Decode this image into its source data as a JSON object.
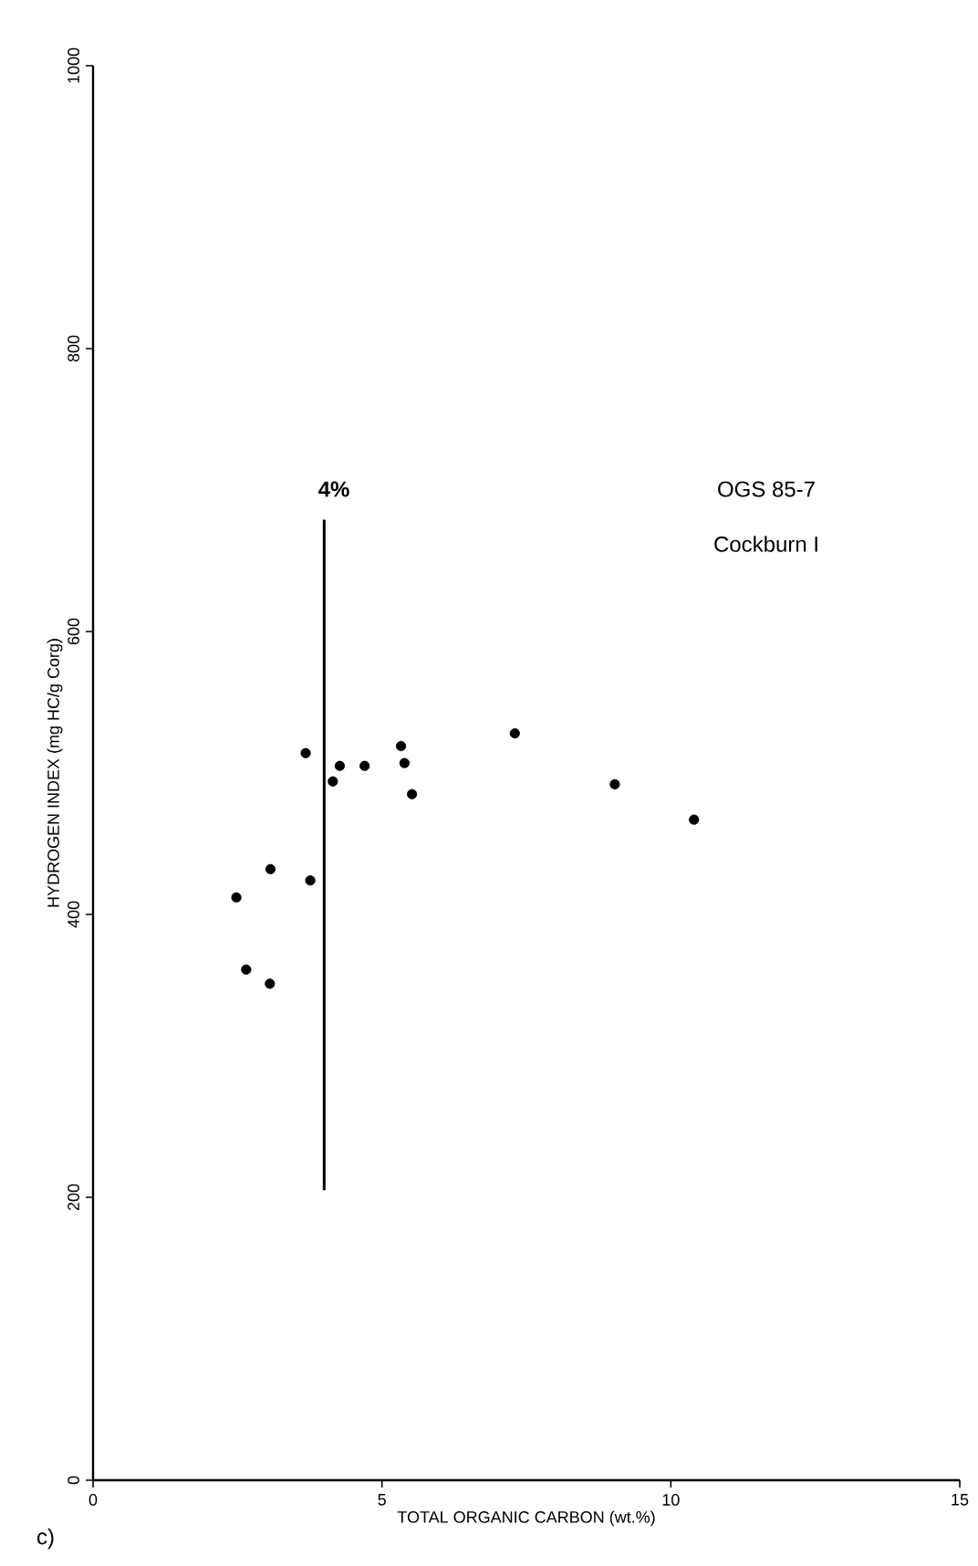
{
  "chart_data": {
    "type": "scatter",
    "xlabel": "TOTAL ORGANIC CARBON (wt.%)",
    "ylabel": "HYDROGEN INDEX (mg HC/g Corg)",
    "xlim": [
      0,
      15
    ],
    "ylim": [
      0,
      1000
    ],
    "xticks": [
      0,
      5,
      10,
      15
    ],
    "yticks": [
      0,
      200,
      400,
      600,
      800,
      1000
    ],
    "grid": false,
    "marker": "circle",
    "series": [
      {
        "color": "#000000",
        "x": [
          3.68,
          4.27,
          4.15,
          4.7,
          5.33,
          5.39,
          5.52,
          7.3,
          9.03,
          10.4,
          3.07,
          3.76,
          2.48,
          2.65,
          3.06
        ],
        "values": [
          514,
          505,
          494,
          505,
          519,
          507,
          485,
          528,
          492,
          467,
          432,
          424,
          412,
          361,
          351
        ]
      },
      {
        "type": "line",
        "marker": "none",
        "color": "#000000",
        "x": [
          4,
          4
        ],
        "values": [
          205,
          679
        ]
      }
    ],
    "annotations": [
      "4%",
      "OGS 85-7",
      "Cockburn I",
      "c)"
    ]
  }
}
